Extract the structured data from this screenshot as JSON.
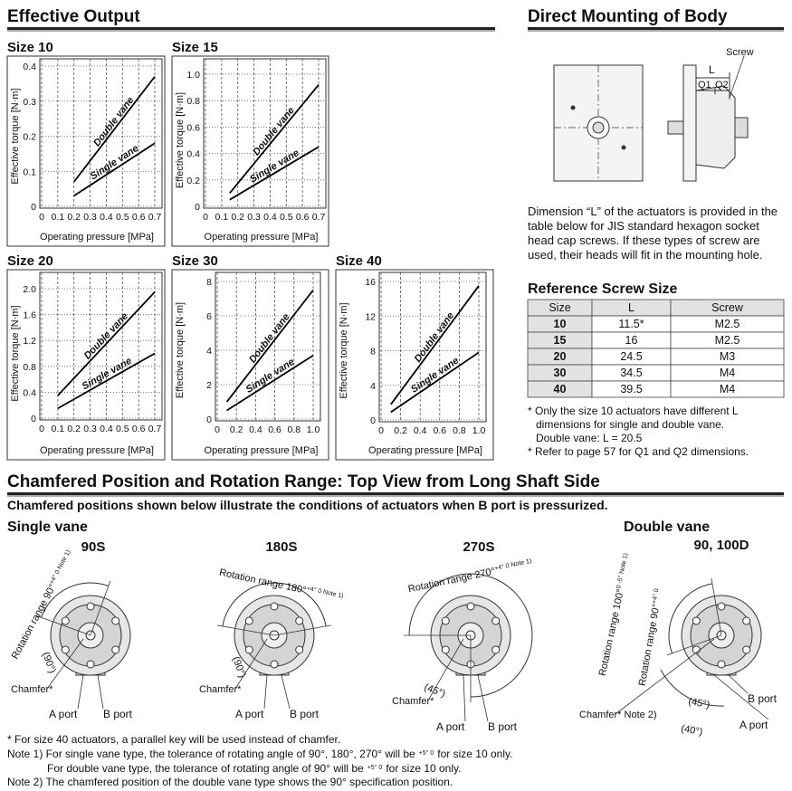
{
  "sections": {
    "effective_output": "Effective Output",
    "direct_mounting": "Direct Mounting of Body",
    "chamfered": "Chamfered Position and Rotation Range: Top View from Long Shaft Side"
  },
  "chart_data": [
    {
      "type": "line",
      "title": "Size 10",
      "ylabel": "Effective torque [N·m]",
      "xlabel": "Operating pressure [MPa]",
      "xlim": [
        0,
        0.7
      ],
      "ylim": [
        0,
        0.4
      ],
      "xticks": [
        0,
        0.1,
        0.2,
        0.3,
        0.4,
        0.5,
        0.6,
        0.7
      ],
      "yticks": [
        0,
        0.1,
        0.2,
        0.3,
        0.4
      ],
      "grid": true,
      "series": [
        {
          "name": "Double vane",
          "color": "#000000",
          "x": [
            0.2,
            0.7
          ],
          "values": [
            0.07,
            0.37
          ]
        },
        {
          "name": "Single vane",
          "color": "#000000",
          "x": [
            0.2,
            0.7
          ],
          "values": [
            0.03,
            0.18
          ]
        }
      ]
    },
    {
      "type": "line",
      "title": "Size 15",
      "ylabel": "Effective torque [N·m]",
      "xlabel": "Operating pressure [MPa]",
      "xlim": [
        0,
        0.7
      ],
      "ylim": [
        0,
        1
      ],
      "xticks": [
        0,
        0.1,
        0.2,
        0.3,
        0.4,
        0.5,
        0.6,
        0.7
      ],
      "yticks": [
        0,
        0.2,
        0.4,
        0.6,
        0.8,
        {
          "value": 1,
          "label": "1.0"
        }
      ],
      "grid": true,
      "series": [
        {
          "name": "Double vane",
          "color": "#000000",
          "x": [
            0.15,
            0.7
          ],
          "values": [
            0.1,
            0.92
          ]
        },
        {
          "name": "Single vane",
          "color": "#000000",
          "x": [
            0.15,
            0.7
          ],
          "values": [
            0.05,
            0.45
          ]
        }
      ]
    },
    {
      "type": "line",
      "title": "Size 20",
      "ylabel": "Effective torque [N·m]",
      "xlabel": "Operating pressure [MPa]",
      "xlim": [
        0,
        0.7
      ],
      "ylim": [
        0,
        2
      ],
      "xticks": [
        0,
        0.1,
        0.2,
        0.3,
        0.4,
        0.5,
        0.6,
        0.7
      ],
      "yticks": [
        0,
        0.4,
        0.8,
        1.2,
        1.6,
        {
          "value": 2,
          "label": "2.0"
        }
      ],
      "grid": true,
      "series": [
        {
          "name": "Double vane",
          "color": "#000000",
          "x": [
            0.1,
            0.7
          ],
          "values": [
            0.35,
            1.95
          ]
        },
        {
          "name": "Single vane",
          "color": "#000000",
          "x": [
            0.1,
            0.7
          ],
          "values": [
            0.15,
            1
          ]
        }
      ]
    },
    {
      "type": "line",
      "title": "Size 30",
      "ylabel": "Effective torque [N·m]",
      "xlabel": "Operating pressure [MPa]",
      "xlim": [
        0,
        1
      ],
      "ylim": [
        0,
        8
      ],
      "xticks": [
        0,
        0.2,
        0.4,
        0.6,
        0.8,
        {
          "value": 1,
          "label": "1.0"
        }
      ],
      "yticks": [
        0,
        2,
        4,
        6,
        8
      ],
      "grid": true,
      "series": [
        {
          "name": "Double vane",
          "color": "#000000",
          "x": [
            0.1,
            1
          ],
          "values": [
            1,
            7.5
          ]
        },
        {
          "name": "Single vane",
          "color": "#000000",
          "x": [
            0.1,
            1
          ],
          "values": [
            0.5,
            3.7
          ]
        }
      ]
    },
    {
      "type": "line",
      "title": "Size 40",
      "ylabel": "Effective torque [N·m]",
      "xlabel": "Operating pressure [MPa]",
      "xlim": [
        0,
        1
      ],
      "ylim": [
        0,
        16
      ],
      "xticks": [
        0,
        0.2,
        0.4,
        0.6,
        0.8,
        {
          "value": 1,
          "label": "1.0"
        }
      ],
      "yticks": [
        0,
        4,
        8,
        12,
        16
      ],
      "grid": true,
      "series": [
        {
          "name": "Double vane",
          "color": "#000000",
          "x": [
            0.1,
            1
          ],
          "values": [
            1.8,
            15.5
          ]
        },
        {
          "name": "Single vane",
          "color": "#000000",
          "x": [
            0.1,
            1
          ],
          "values": [
            0.9,
            7.8
          ]
        }
      ]
    }
  ],
  "mounting": {
    "labels": {
      "screw": "Screw",
      "l": "L",
      "q1": "Q1",
      "q2": "Q2"
    },
    "description": [
      "Dimension “L” of the actuators is provided in the",
      "table below for JIS standard hexagon socket",
      "head cap screws. If these types of screw are",
      "used, their heads will fit in the mounting hole."
    ]
  },
  "screw_table": {
    "title": "Reference Screw Size",
    "header": [
      "Size",
      "L",
      "Screw"
    ],
    "rows": [
      [
        "10",
        "11.5*",
        "M2.5"
      ],
      [
        "15",
        "16",
        "M2.5"
      ],
      [
        "20",
        "24.5",
        "M3"
      ],
      [
        "30",
        "34.5",
        "M4"
      ],
      [
        "40",
        "39.5",
        "M4"
      ]
    ],
    "notes": [
      "* Only the size 10 actuators have different L",
      "dimensions for single and double vane.",
      "Double vane: L = 20.5",
      "* Refer to page 57 for Q1 and Q2 dimensions."
    ]
  },
  "chamfer": {
    "subtitle": "Chamfered positions shown below illustrate the conditions of actuators when B port is pressurized.",
    "single_vane": "Single vane",
    "double_vane": "Double vane",
    "diagrams": [
      {
        "label": "90S",
        "range": "Rotation range 90°",
        "tol": "+4° 0",
        "note": "Note 1)",
        "chamfer": "Chamfer*",
        "a_port": "A port",
        "b_port": "B port",
        "angle": "(90°)"
      },
      {
        "label": "180S",
        "range": "Rotation range 180°",
        "tol": "+4° 0",
        "note": "Note 1)",
        "chamfer": "Chamfer*",
        "a_port": "A port",
        "b_port": "B port",
        "angle": "(90°)"
      },
      {
        "label": "270S",
        "range": "Rotation range 270°",
        "tol": "+4° 0",
        "note": "Note 1)",
        "chamfer": "Chamfer*",
        "a_port": "A port",
        "b_port": "B port",
        "angle": "(45°)"
      },
      {
        "label": "90, 100D",
        "range": "Rotation range 100°",
        "tol": "0 -5°",
        "range2": "Rotation range 90°",
        "tol2": "+4° 0",
        "note": "Note 1)",
        "chamfer": "Chamfer* Note 2)",
        "a_port": "A port",
        "b_port": "B port",
        "angle": "(45°)",
        "angle2": "(40°)"
      }
    ]
  },
  "footnotes": [
    {
      "text": "* For size 40 actuators, a parallel key will be used instead of chamfer."
    },
    {
      "text": "Note 1) For single vane type, the tolerance of rotating angle of 90°, 180°, 270° will be",
      "tol": "+5° 0",
      "after": "for size 10 only."
    },
    {
      "text": "For double vane type, the tolerance of rotating angle of 90° will be",
      "tol": "+5° 0",
      "after": "for size 10 only."
    },
    {
      "text": "Note 2) The chamfered position of the double vane type shows the 90° specification position."
    }
  ]
}
